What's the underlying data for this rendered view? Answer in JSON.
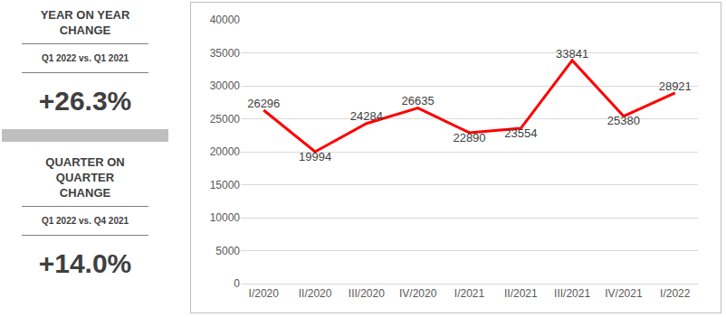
{
  "kpis": [
    {
      "title": "YEAR ON YEAR CHANGE",
      "subtitle": "Q1 2022 vs. Q1 2021",
      "value": "+26.3%"
    },
    {
      "title": "QUARTER ON QUARTER CHANGE",
      "subtitle": "Q1 2022 vs. Q4 2021",
      "value": "+14.0%"
    }
  ],
  "chart_data": {
    "type": "line",
    "categories": [
      "I/2020",
      "II/2020",
      "III/2020",
      "IV/2020",
      "I/2021",
      "II/2021",
      "III/2021",
      "IV/2021",
      "I/2022"
    ],
    "values": [
      26296,
      19994,
      24284,
      26635,
      22890,
      23554,
      33841,
      25380,
      28921
    ],
    "color": "#ff0000",
    "ylim": [
      0,
      40000
    ],
    "yticks": [
      0,
      5000,
      10000,
      15000,
      20000,
      25000,
      30000,
      35000,
      40000
    ],
    "grid": true,
    "data_labels": true
  }
}
